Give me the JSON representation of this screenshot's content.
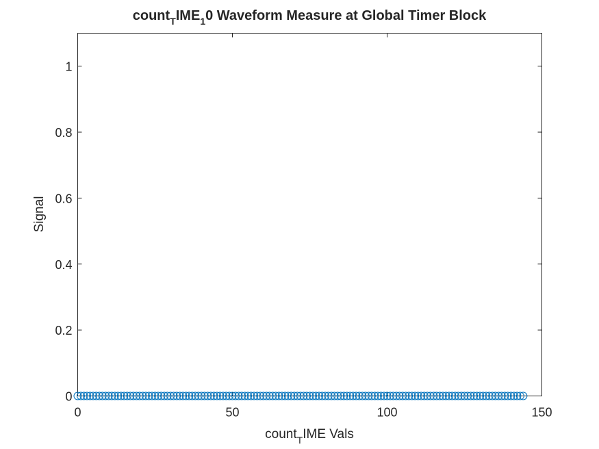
{
  "chart_data": {
    "type": "scatter",
    "title": {
      "base": "count",
      "sub1": "T",
      "mid": "IME",
      "sub2": "1",
      "rest": "0 Waveform Measure at Global Timer Block"
    },
    "xlabel": {
      "base": "count",
      "sub": "T",
      "rest": "IME Vals"
    },
    "ylabel": "Signal",
    "xlim": [
      0,
      150
    ],
    "ylim": [
      0,
      1.1
    ],
    "xticks": [
      0,
      50,
      100,
      150
    ],
    "yticks": [
      0,
      0.2,
      0.4,
      0.6,
      0.8,
      1
    ],
    "xtick_labels": [
      "0",
      "50",
      "100",
      "150"
    ],
    "ytick_labels": [
      "0",
      "0.2",
      "0.4",
      "0.6",
      "0.8",
      "1"
    ],
    "marker": "circle-open",
    "color": "#0072BD",
    "grid": false,
    "series": [
      {
        "x_start": 0,
        "x_end": 144,
        "x_step": 1,
        "y": 0
      }
    ]
  }
}
